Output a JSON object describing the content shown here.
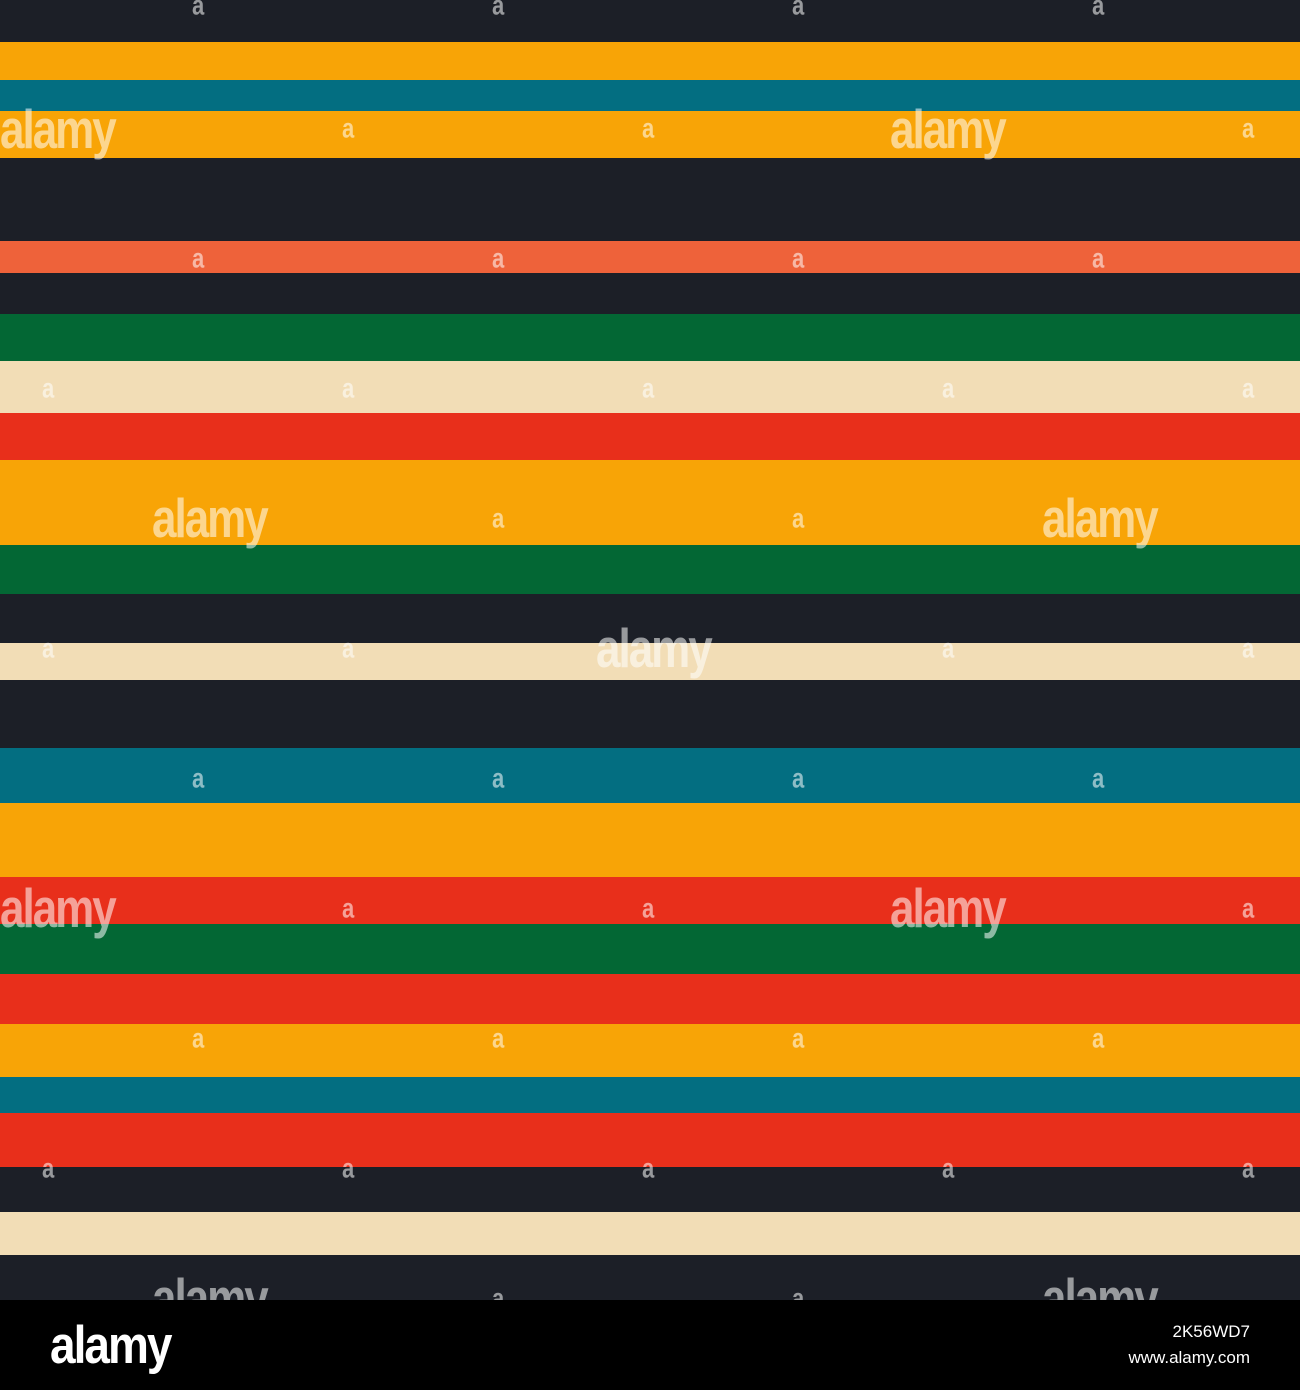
{
  "pattern": {
    "palette": {
      "navy": "#1c1f27",
      "yellow": "#f8a406",
      "teal": "#036e81",
      "orange": "#ee623a",
      "green": "#036734",
      "cream": "#f2ddb6",
      "red": "#e82f1b"
    },
    "stripes": [
      "navy",
      "yellow",
      "teal",
      "yellow",
      "navy",
      "orange",
      "navy",
      "green",
      "cream",
      "red",
      "yellow",
      "green",
      "navy",
      "cream",
      "navy",
      "teal",
      "yellow",
      "red",
      "green",
      "red",
      "yellow",
      "teal",
      "red",
      "navy",
      "cream",
      "navy"
    ]
  },
  "watermark": {
    "big_text": "alamy",
    "small_text": "a"
  },
  "footer": {
    "logo": "alamy",
    "image_id": "2K56WD7",
    "url": "www.alamy.com"
  }
}
